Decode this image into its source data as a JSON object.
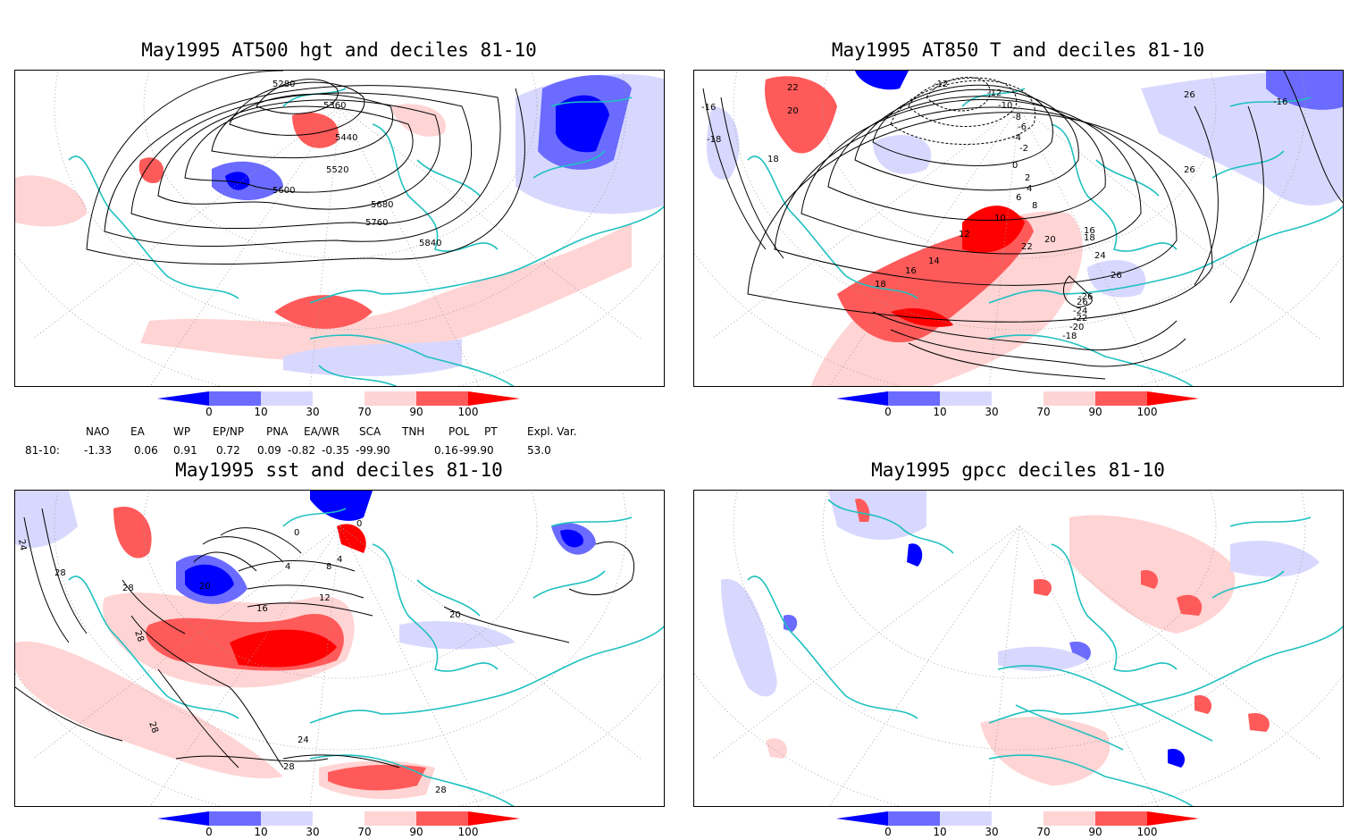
{
  "panels": [
    {
      "id": "p1",
      "title": "May1995 AT500 hgt and deciles 81-10",
      "contour_labels": [
        "5280",
        "5360",
        "5440",
        "5520",
        "5600",
        "5680",
        "5760",
        "5840"
      ]
    },
    {
      "id": "p2",
      "title": "May1995 AT850 T and deciles 81-10",
      "contour_labels": [
        "-12",
        "-12",
        "-10",
        "-8",
        "-6",
        "-4",
        "-2",
        "0",
        "2",
        "4",
        "6",
        "8",
        "10",
        "12",
        "14",
        "16",
        "16",
        "18",
        "18",
        "18",
        "20",
        "20",
        "22",
        "22",
        "24",
        "26",
        "26",
        "26",
        "26",
        "-16",
        "-18",
        "-16",
        "-18",
        "-20",
        "-22",
        "-24",
        "-26"
      ]
    },
    {
      "id": "p3",
      "title": "May1995 sst and deciles 81-10",
      "contour_labels": [
        "24",
        "28",
        "28",
        "28",
        "20",
        "16",
        "12",
        "8",
        "4",
        "4",
        "0",
        "0",
        "20",
        "24",
        "28",
        "28",
        "28"
      ]
    },
    {
      "id": "p4",
      "title": "May1995 gpcc deciles 81-10",
      "contour_labels": []
    }
  ],
  "colorbar": {
    "labels": [
      "0",
      "10",
      "30",
      "70",
      "90",
      "100"
    ],
    "colors": [
      "#0000ff",
      "#6b6bff",
      "#d8d8ff",
      "#ffffff",
      "#ffd4d4",
      "#ff5a5a",
      "#ff0000"
    ]
  },
  "indices": {
    "row_label": "81-10:",
    "headers": [
      "NAO",
      "EA",
      "WP",
      "EP/NP",
      "PNA",
      "EA/WR",
      "SCA",
      "TNH",
      "POL",
      "PT",
      "Expl. Var."
    ],
    "values": [
      "-1.33",
      "0.06",
      "0.91",
      "0.72",
      "0.09",
      "-0.82",
      "-0.35",
      "-99.90",
      "0.16",
      "-99.90",
      "53.0"
    ]
  },
  "colors": {
    "coast": "#20c0c0",
    "contour": "#000000",
    "grid": "#999999"
  }
}
